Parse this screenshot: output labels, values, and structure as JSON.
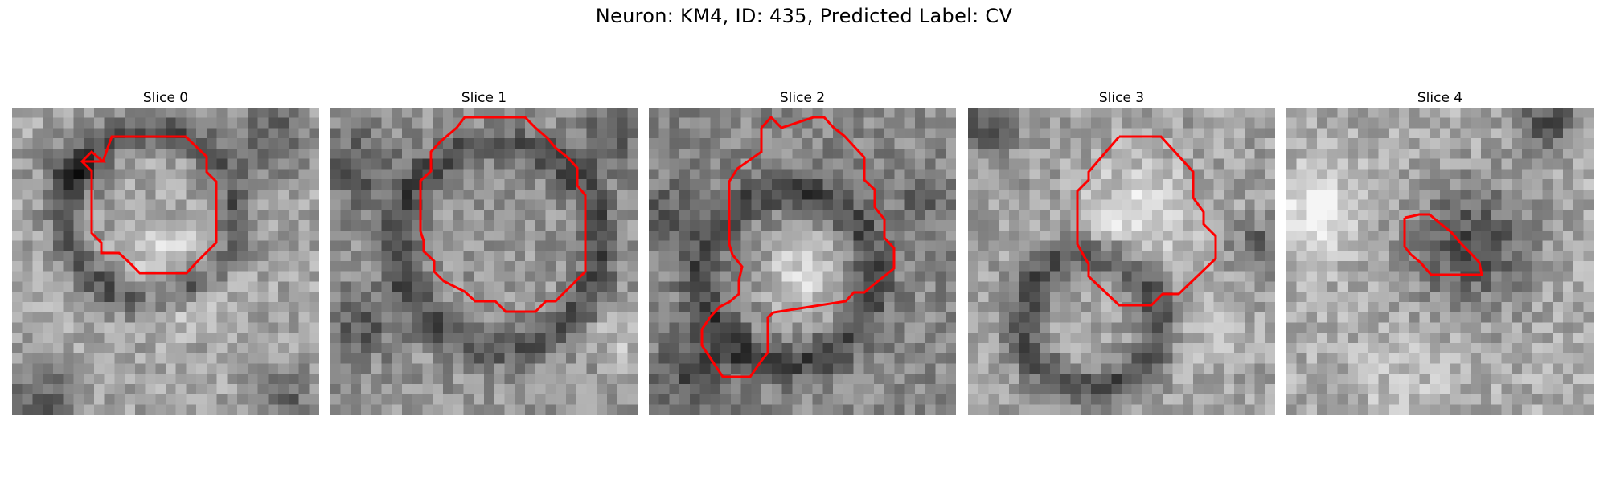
{
  "title": "Neuron: KM4, ID: 435, Predicted Label: CV",
  "contour_color": "#ff0000",
  "panels": [
    {
      "label": "Slice 0"
    },
    {
      "label": "Slice 1"
    },
    {
      "label": "Slice 2"
    },
    {
      "label": "Slice 3"
    },
    {
      "label": "Slice 4"
    }
  ]
}
